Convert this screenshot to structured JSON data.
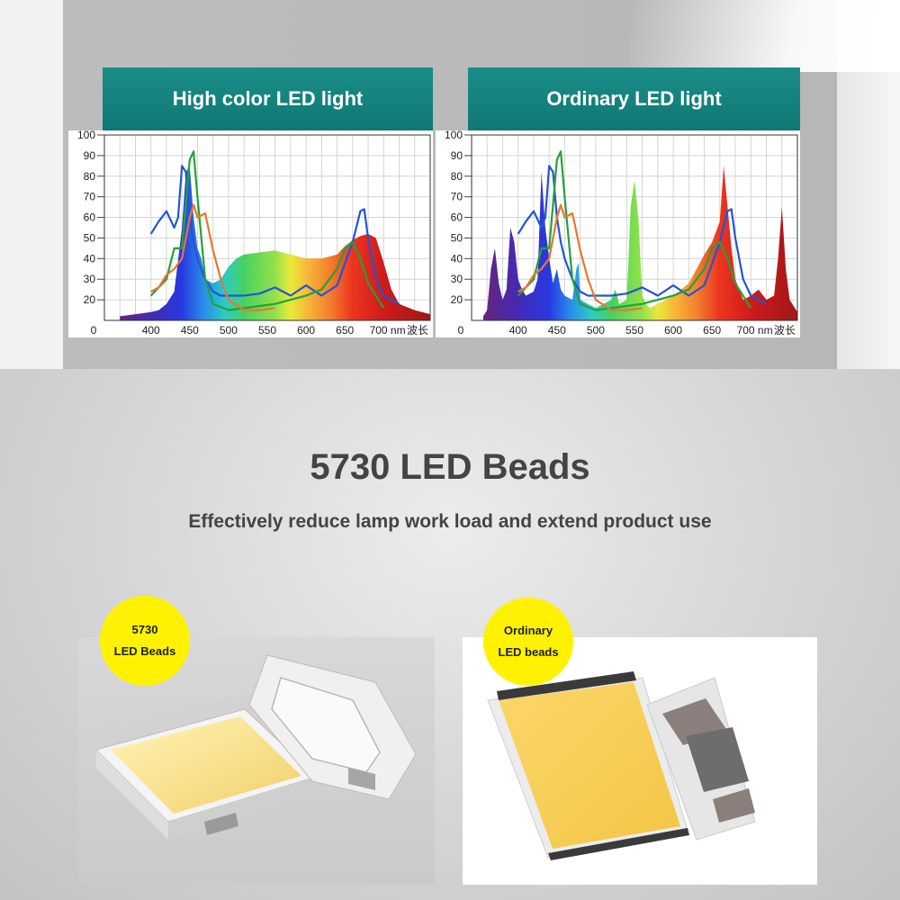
{
  "colors": {
    "teal_header": "#137f7a",
    "badge_yellow": "#fff200",
    "text_dark": "#444444",
    "blue_curve": "#2255d6",
    "green_curve": "#22a23a",
    "orange_curve": "#e8772e"
  },
  "charts": [
    {
      "title": "High color LED light",
      "chart_data": {
        "type": "area",
        "title": "High color LED light",
        "y_ticks": [
          "100",
          "90",
          "80",
          "70",
          "60",
          "50",
          "40",
          "30",
          "20"
        ],
        "x_ticks": [
          "0",
          "400",
          "450",
          "500",
          "550",
          "600",
          "650",
          "700 nm",
          "波长"
        ],
        "xlim": [
          340,
          760
        ],
        "ylim": [
          10,
          100
        ],
        "spectrum": {
          "x": [
            360,
            380,
            400,
            410,
            420,
            430,
            440,
            445,
            450,
            455,
            460,
            465,
            470,
            480,
            490,
            500,
            510,
            520,
            540,
            560,
            580,
            600,
            620,
            640,
            650,
            660,
            670,
            680,
            690,
            700,
            710,
            720,
            740,
            760
          ],
          "y": [
            12,
            13,
            14,
            15,
            18,
            24,
            55,
            82,
            85,
            60,
            45,
            40,
            30,
            28,
            30,
            36,
            40,
            42,
            43,
            44,
            42,
            40,
            40,
            42,
            46,
            49,
            51,
            52,
            50,
            38,
            25,
            18,
            15,
            13
          ]
        },
        "series": [
          {
            "color": "#2255d6",
            "x": [
              400,
              410,
              420,
              430,
              435,
              440,
              445,
              450,
              455,
              460,
              470,
              480,
              490,
              500,
              520,
              540,
              560,
              580,
              600,
              620,
              640,
              660,
              670,
              675,
              680,
              690,
              700,
              720
            ],
            "y": [
              52,
              58,
              63,
              55,
              60,
              85,
              82,
              60,
              48,
              40,
              30,
              24,
              22,
              22,
              22,
              23,
              26,
              22,
              27,
              22,
              27,
              48,
              63,
              64,
              50,
              30,
              22,
              18
            ]
          },
          {
            "color": "#22a23a",
            "x": [
              400,
              420,
              430,
              440,
              450,
              455,
              460,
              470,
              480,
              500,
              520,
              540,
              560,
              580,
              600,
              620,
              640,
              650,
              660,
              670,
              680,
              700
            ],
            "y": [
              22,
              30,
              45,
              45,
              88,
              92,
              70,
              30,
              18,
              15,
              16,
              17,
              18,
              20,
              22,
              25,
              35,
              45,
              48,
              40,
              28,
              16
            ]
          },
          {
            "color": "#e8772e",
            "x": [
              400,
              410,
              420,
              430,
              440,
              445,
              450,
              455,
              460,
              470,
              480,
              490,
              500,
              520,
              540,
              560
            ],
            "y": [
              24,
              26,
              32,
              35,
              40,
              50,
              60,
              66,
              60,
              62,
              44,
              30,
              20,
              15,
              15,
              16
            ]
          }
        ]
      }
    },
    {
      "title": "Ordinary LED light",
      "chart_data": {
        "type": "area",
        "title": "Ordinary LED light",
        "y_ticks": [
          "100",
          "90",
          "80",
          "70",
          "60",
          "50",
          "40",
          "30",
          "20"
        ],
        "x_ticks": [
          "0",
          "400",
          "450",
          "500",
          "550",
          "600",
          "650",
          "700 nm",
          "波长"
        ],
        "xlim": [
          340,
          760
        ],
        "ylim": [
          10,
          100
        ],
        "spectrum": {
          "x": [
            355,
            360,
            365,
            370,
            375,
            380,
            385,
            390,
            395,
            400,
            405,
            410,
            420,
            425,
            430,
            435,
            440,
            445,
            450,
            455,
            460,
            470,
            475,
            478,
            480,
            490,
            500,
            510,
            520,
            525,
            528,
            530,
            540,
            545,
            550,
            555,
            560,
            565,
            570,
            580,
            590,
            600,
            610,
            620,
            630,
            640,
            650,
            660,
            665,
            670,
            675,
            680,
            685,
            690,
            700,
            710,
            720,
            730,
            735,
            740,
            745,
            750,
            760
          ],
          "y": [
            12,
            15,
            35,
            45,
            28,
            20,
            25,
            55,
            48,
            30,
            25,
            22,
            24,
            30,
            82,
            55,
            40,
            28,
            35,
            25,
            22,
            20,
            35,
            38,
            20,
            18,
            16,
            18,
            20,
            25,
            22,
            18,
            20,
            65,
            78,
            60,
            22,
            18,
            16,
            18,
            20,
            22,
            25,
            28,
            35,
            42,
            48,
            58,
            85,
            65,
            45,
            30,
            25,
            20,
            22,
            25,
            20,
            22,
            40,
            65,
            35,
            20,
            14
          ]
        },
        "series": [
          {
            "color": "#2255d6",
            "x": [
              400,
              410,
              420,
              430,
              435,
              440,
              445,
              450,
              455,
              460,
              470,
              480,
              490,
              500,
              520,
              540,
              560,
              580,
              600,
              620,
              640,
              660,
              670,
              675,
              680,
              690,
              700,
              720
            ],
            "y": [
              52,
              58,
              63,
              55,
              60,
              85,
              82,
              60,
              48,
              40,
              30,
              24,
              22,
              22,
              22,
              23,
              26,
              22,
              27,
              22,
              27,
              48,
              63,
              64,
              50,
              30,
              22,
              18
            ]
          },
          {
            "color": "#22a23a",
            "x": [
              400,
              420,
              430,
              440,
              450,
              455,
              460,
              470,
              480,
              500,
              520,
              540,
              560,
              580,
              600,
              620,
              640,
              650,
              660,
              670,
              680,
              700
            ],
            "y": [
              22,
              30,
              45,
              45,
              88,
              92,
              70,
              30,
              18,
              15,
              16,
              17,
              18,
              20,
              22,
              25,
              35,
              45,
              48,
              40,
              28,
              16
            ]
          },
          {
            "color": "#e8772e",
            "x": [
              400,
              410,
              420,
              430,
              440,
              445,
              450,
              455,
              460,
              470,
              480,
              490,
              500,
              520,
              540,
              560
            ],
            "y": [
              24,
              26,
              32,
              35,
              40,
              50,
              60,
              66,
              60,
              62,
              44,
              30,
              20,
              15,
              15,
              16
            ]
          }
        ]
      }
    }
  ],
  "headline": "5730 LED Beads",
  "subline": "Effectively reduce lamp work load and extend product use",
  "badges": {
    "left": {
      "line1": "5730",
      "line2": "LED Beads"
    },
    "right": {
      "line1": "Ordinary",
      "line2": "LED beads"
    }
  }
}
